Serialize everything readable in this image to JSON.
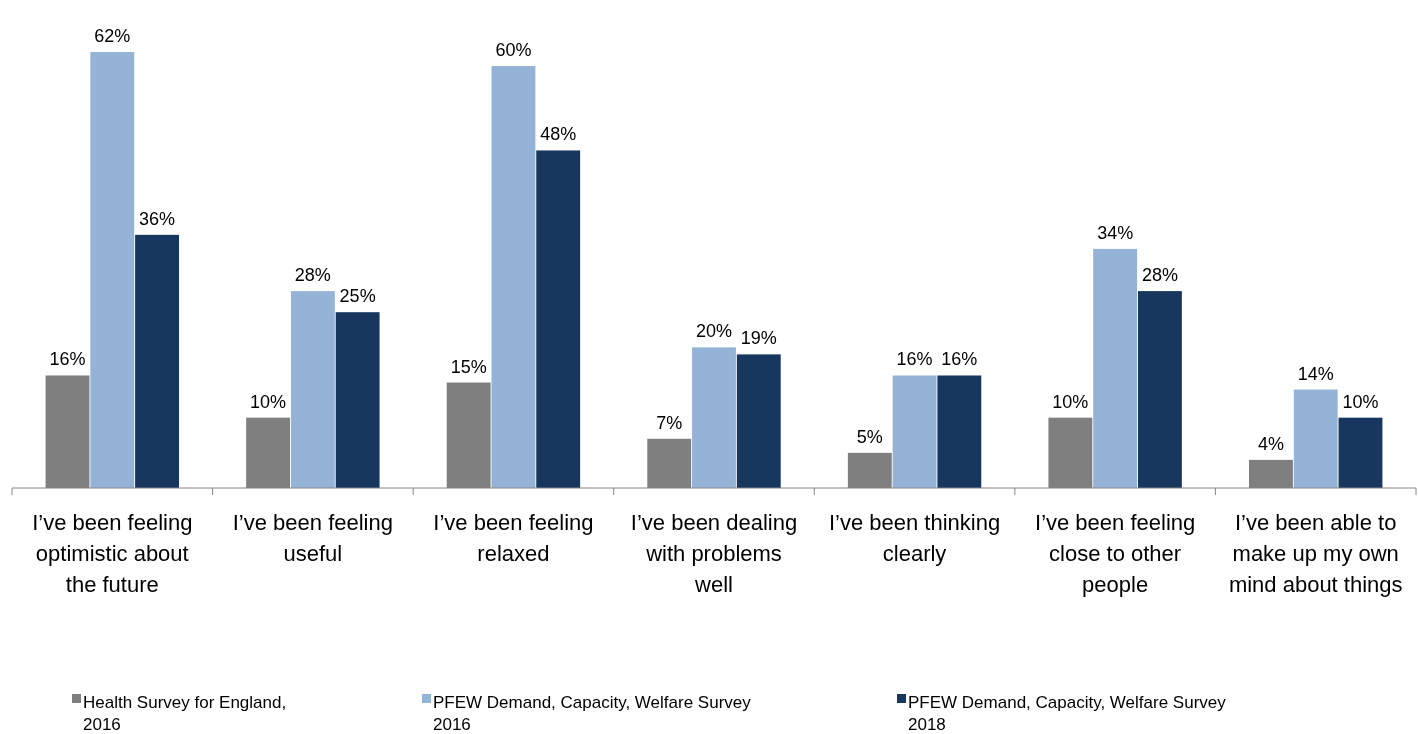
{
  "chart_data": {
    "type": "bar",
    "categories": [
      "I’ve been feeling optimistic about the future",
      "I’ve been feeling useful",
      "I’ve been feeling relaxed",
      "I’ve been dealing with problems well",
      "I’ve been thinking clearly",
      "I’ve been feeling close to other people",
      "I’ve been able to make up my own mind about things"
    ],
    "series": [
      {
        "name": "Health Survey for England, 2016",
        "color": "#7f7f7f",
        "values": [
          16,
          10,
          15,
          7,
          5,
          10,
          4
        ],
        "value_labels": [
          "16%",
          "10%",
          "15%",
          "7%",
          "5%",
          "10%",
          "4%"
        ]
      },
      {
        "name": "PFEW Demand, Capacity, Welfare Survey 2016",
        "color": "#95b3d7",
        "values": [
          62,
          28,
          60,
          20,
          16,
          34,
          14
        ],
        "value_labels": [
          "62%",
          "28%",
          "60%",
          "20%",
          "16%",
          "34%",
          "14%"
        ]
      },
      {
        "name": "PFEW Demand, Capacity, Welfare Survey 2018",
        "color": "#17375e",
        "values": [
          36,
          25,
          48,
          19,
          16,
          28,
          10
        ],
        "value_labels": [
          "36%",
          "25%",
          "48%",
          "19%",
          "16%",
          "28%",
          "10%"
        ]
      }
    ],
    "legend": "bottom"
  }
}
